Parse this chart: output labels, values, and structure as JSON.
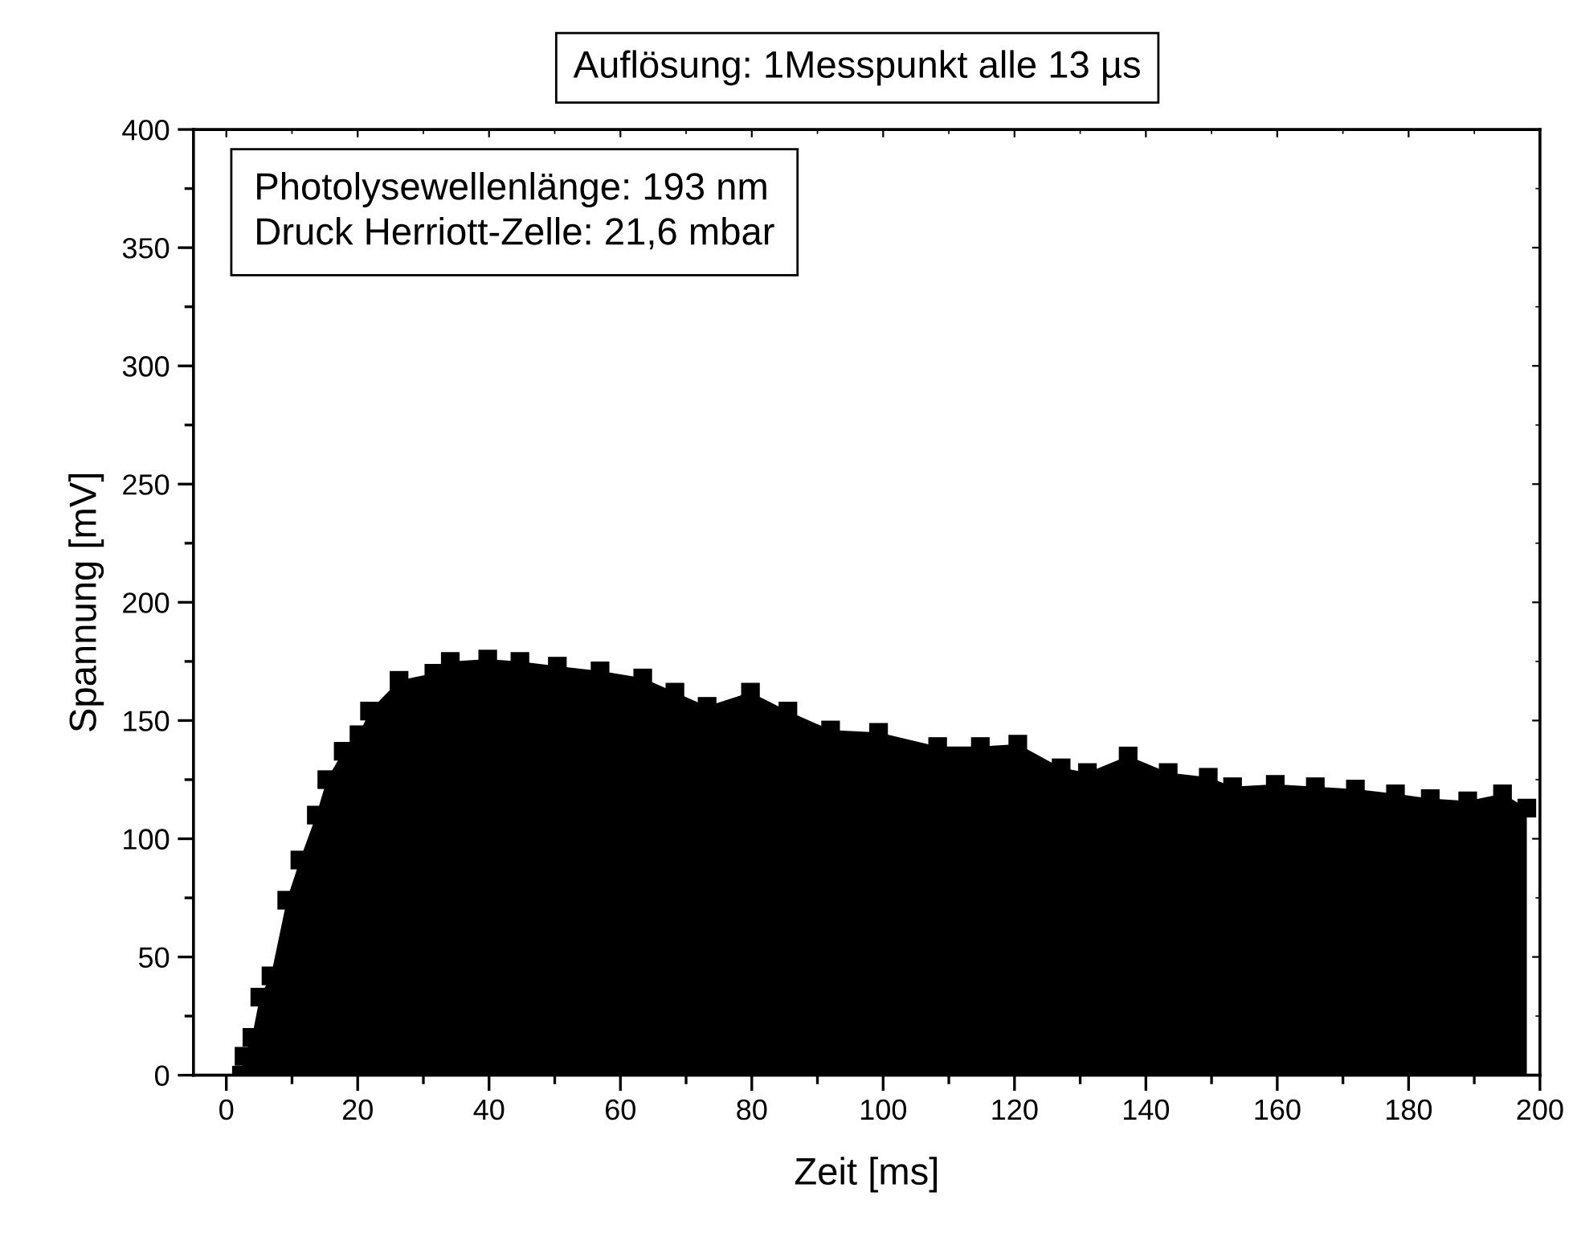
{
  "chart_data": {
    "type": "area",
    "title": "Auflösung: 1Messpunkt alle 13 µs",
    "xlabel": "Zeit [ms]",
    "ylabel": "Spannung [mV]",
    "annotations": [
      "Photolysewellenlänge: 193 nm\nDruck Herriott-Zelle: 21,6 mbar"
    ],
    "series": [
      {
        "color": "#000000",
        "x": [
          2.3,
          2.7,
          3.9,
          5.1,
          6.8,
          9.2,
          11.2,
          13.7,
          15.3,
          17.8,
          20.2,
          21.8,
          26.3,
          31.6,
          34.1,
          39.8,
          44.7,
          50.4,
          56.9,
          63.4,
          68.3,
          73.2,
          79.8,
          85.5,
          92.0,
          99.3,
          108.3,
          114.8,
          120.5,
          127.1,
          131.1,
          137.3,
          143.4,
          149.5,
          153.2,
          159.7,
          165.8,
          171.9,
          178.0,
          183.3,
          189.0,
          194.3,
          198.0
        ],
        "values": [
          0,
          8,
          16,
          33,
          42,
          74,
          91,
          110,
          125,
          137,
          144,
          154,
          167,
          170,
          175,
          176,
          175,
          173,
          171,
          168,
          162,
          156,
          162,
          154,
          146,
          145,
          139,
          139,
          140,
          130,
          128,
          135,
          128,
          126,
          122,
          123,
          122,
          121,
          119,
          117,
          116,
          119,
          113
        ]
      }
    ],
    "xlim": [
      -5,
      200
    ],
    "xticks": [
      0,
      20,
      40,
      60,
      80,
      100,
      120,
      140,
      160,
      180,
      200
    ],
    "ylim": [
      0,
      400
    ],
    "yticks": [
      0,
      50,
      100,
      150,
      200,
      250,
      300,
      350,
      400
    ],
    "marker": "square",
    "grid": false,
    "legend": false
  }
}
